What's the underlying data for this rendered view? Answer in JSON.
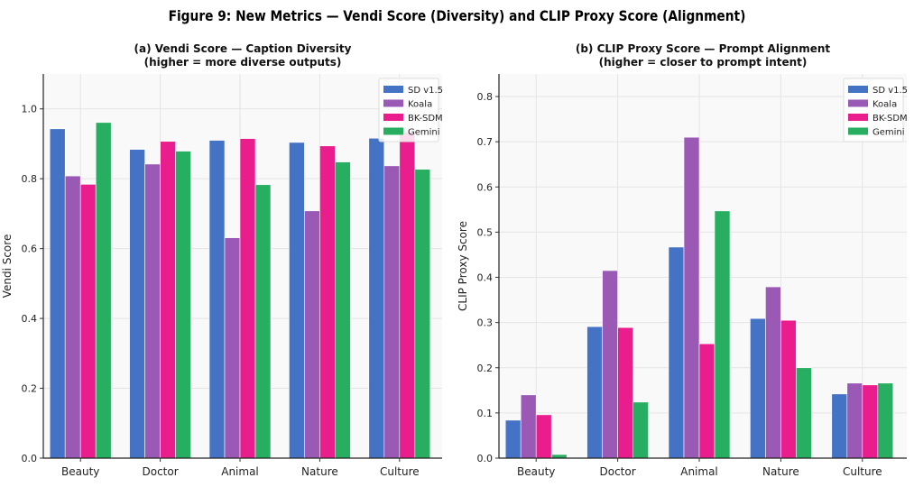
{
  "title": "Figure 9: New Metrics — Vendi Score (Diversity) and CLIP Proxy Score (Alignment)",
  "colors": {
    "SD v1.5": "#4472c4",
    "Koala": "#9b59b6",
    "BK-SDM": "#e91e8c",
    "Gemini": "#27ae60"
  },
  "chart_data": [
    {
      "type": "bar",
      "title": [
        "(a) Vendi Score — Caption Diversity",
        "(higher = more diverse outputs)"
      ],
      "xlabel": "",
      "ylabel": "Vendi Score",
      "ylim": [
        0,
        1.1
      ],
      "yticks": [
        "0.0",
        "0.2",
        "0.4",
        "0.6",
        "0.8",
        "1.0"
      ],
      "grid": true,
      "legend": "top-right",
      "categories": [
        "Beauty",
        "Doctor",
        "Animal",
        "Nature",
        "Culture"
      ],
      "series": [
        {
          "name": "SD v1.5",
          "values": [
            0.943,
            0.884,
            0.91,
            0.904,
            0.916
          ]
        },
        {
          "name": "Koala",
          "values": [
            0.808,
            0.842,
            0.631,
            0.708,
            0.837
          ]
        },
        {
          "name": "BK-SDM",
          "values": [
            0.784,
            0.907,
            0.915,
            0.894,
            0.933
          ]
        },
        {
          "name": "Gemini",
          "values": [
            0.961,
            0.879,
            0.783,
            0.848,
            0.827
          ]
        }
      ]
    },
    {
      "type": "bar",
      "title": [
        "(b) CLIP Proxy Score — Prompt Alignment",
        "(higher = closer to prompt intent)"
      ],
      "xlabel": "",
      "ylabel": "CLIP Proxy Score",
      "ylim": [
        0,
        0.85
      ],
      "yticks": [
        "0.0",
        "0.1",
        "0.2",
        "0.3",
        "0.4",
        "0.5",
        "0.6",
        "0.7",
        "0.8"
      ],
      "grid": true,
      "legend": "top-right",
      "categories": [
        "Beauty",
        "Doctor",
        "Animal",
        "Nature",
        "Culture"
      ],
      "series": [
        {
          "name": "SD v1.5",
          "values": [
            0.084,
            0.291,
            0.467,
            0.309,
            0.142
          ]
        },
        {
          "name": "Koala",
          "values": [
            0.14,
            0.415,
            0.71,
            0.379,
            0.166
          ]
        },
        {
          "name": "BK-SDM",
          "values": [
            0.096,
            0.289,
            0.253,
            0.305,
            0.162
          ]
        },
        {
          "name": "Gemini",
          "values": [
            0.008,
            0.124,
            0.547,
            0.2,
            0.166
          ]
        }
      ]
    }
  ]
}
